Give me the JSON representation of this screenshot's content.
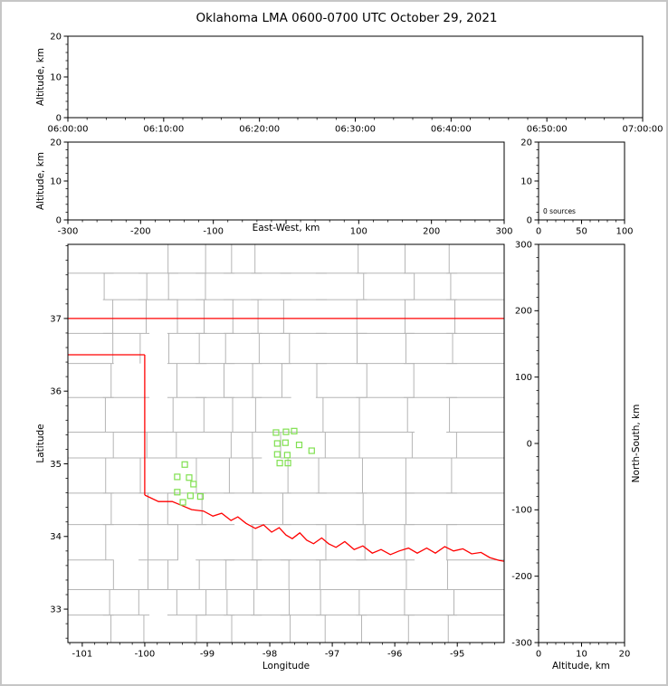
{
  "figure": {
    "title": "Oklahoma LMA 0600-0700 UTC October 29, 2021"
  },
  "colors": {
    "axis": "#000000",
    "county_lines": "#b5b5b5",
    "state_boundary": "#ff0000",
    "station_marker": "#80e050",
    "background": "#ffffff",
    "frame_border": "#c6c6c6"
  },
  "labels": {
    "altitude_axis_top": "Altitude, km",
    "altitude_axis_mid": "Altitude, km",
    "east_west_axis": "East-West, km",
    "latitude_axis": "Latitude",
    "longitude_axis": "Longitude",
    "altitude_axis_bottom": "Altitude, km",
    "north_south_axis": "North-South, km",
    "sources_annotation": "0 sources"
  },
  "chart_data": [
    {
      "id": "time_height_panel",
      "type": "scatter",
      "x_tick_labels": [
        "06:00:00",
        "06:10:00",
        "06:20:00",
        "06:30:00",
        "06:40:00",
        "06:50:00",
        "07:00:00"
      ],
      "ylabel": "Altitude, km",
      "ylim": [
        0,
        20
      ],
      "yticks": [
        0,
        10,
        20
      ],
      "points": []
    },
    {
      "id": "east_west_height_panel",
      "type": "scatter",
      "xlabel": "East-West, km",
      "xlim": [
        -300,
        300
      ],
      "xticks": [
        -300,
        -200,
        -100,
        0,
        100,
        200,
        300
      ],
      "x_tick_labels": [
        "-300",
        "-200",
        "-100",
        "",
        "100",
        "200",
        "300"
      ],
      "ylabel": "Altitude, km",
      "ylim": [
        0,
        20
      ],
      "yticks": [
        0,
        10,
        20
      ],
      "points": []
    },
    {
      "id": "altitude_histogram_panel",
      "type": "line",
      "annotation": "0 sources",
      "xlim": [
        0,
        100
      ],
      "xticks": [
        0,
        50,
        100
      ],
      "ylim": [
        0,
        20
      ],
      "yticks": [
        0,
        10,
        20
      ],
      "points": []
    },
    {
      "id": "plan_view_panel",
      "type": "scatter",
      "xlabel": "Longitude",
      "ylabel": "Latitude",
      "xlim": [
        -101.23,
        -94.25
      ],
      "xticks": [
        -101,
        -100,
        -99,
        -98,
        -97,
        -96,
        -95
      ],
      "ylim": [
        32.54,
        38.02
      ],
      "yticks": [
        33,
        34,
        35,
        36,
        37
      ],
      "stations": [
        [
          -99.36,
          34.99
        ],
        [
          -99.48,
          34.82
        ],
        [
          -99.29,
          34.81
        ],
        [
          -99.22,
          34.72
        ],
        [
          -99.48,
          34.61
        ],
        [
          -99.27,
          34.56
        ],
        [
          -99.11,
          34.55
        ],
        [
          -99.39,
          34.47
        ],
        [
          -97.9,
          35.43
        ],
        [
          -97.74,
          35.44
        ],
        [
          -97.61,
          35.45
        ],
        [
          -97.88,
          35.28
        ],
        [
          -97.75,
          35.29
        ],
        [
          -97.53,
          35.26
        ],
        [
          -97.88,
          35.13
        ],
        [
          -97.72,
          35.12
        ],
        [
          -97.33,
          35.18
        ],
        [
          -97.84,
          35.01
        ],
        [
          -97.71,
          35.01
        ]
      ],
      "state_boundary_segments": {
        "kansas_border_37N": [
          [
            -101.23,
            37.0
          ],
          [
            -94.25,
            37.0
          ]
        ],
        "panhandle_south_border_36_5N": [
          [
            -101.23,
            36.5
          ],
          [
            -100.0,
            36.5
          ]
        ],
        "west_border_100W": [
          [
            -100.0,
            36.5
          ],
          [
            -100.0,
            34.57
          ]
        ],
        "red_river_border": [
          [
            -100.0,
            34.57
          ],
          [
            -99.78,
            34.48
          ],
          [
            -99.56,
            34.48
          ],
          [
            -99.42,
            34.43
          ],
          [
            -99.25,
            34.37
          ],
          [
            -99.06,
            34.35
          ],
          [
            -98.91,
            34.28
          ],
          [
            -98.77,
            34.32
          ],
          [
            -98.62,
            34.22
          ],
          [
            -98.51,
            34.27
          ],
          [
            -98.38,
            34.18
          ],
          [
            -98.23,
            34.11
          ],
          [
            -98.1,
            34.16
          ],
          [
            -97.97,
            34.06
          ],
          [
            -97.85,
            34.12
          ],
          [
            -97.74,
            34.02
          ],
          [
            -97.64,
            33.97
          ],
          [
            -97.52,
            34.05
          ],
          [
            -97.41,
            33.95
          ],
          [
            -97.3,
            33.9
          ],
          [
            -97.17,
            33.98
          ],
          [
            -97.06,
            33.9
          ],
          [
            -96.94,
            33.85
          ],
          [
            -96.8,
            33.93
          ],
          [
            -96.65,
            33.82
          ],
          [
            -96.51,
            33.87
          ],
          [
            -96.36,
            33.77
          ],
          [
            -96.22,
            33.82
          ],
          [
            -96.07,
            33.75
          ],
          [
            -95.93,
            33.8
          ],
          [
            -95.78,
            33.84
          ],
          [
            -95.64,
            33.77
          ],
          [
            -95.49,
            33.84
          ],
          [
            -95.35,
            33.77
          ],
          [
            -95.2,
            33.86
          ],
          [
            -95.06,
            33.8
          ],
          [
            -94.91,
            33.83
          ],
          [
            -94.77,
            33.76
          ],
          [
            -94.62,
            33.78
          ],
          [
            -94.48,
            33.71
          ],
          [
            -94.33,
            33.67
          ],
          [
            -94.25,
            33.66
          ]
        ]
      }
    },
    {
      "id": "north_south_height_panel",
      "type": "scatter",
      "xlabel": "Altitude, km",
      "ylabel": "North-South, km",
      "xlim": [
        0,
        20
      ],
      "xticks": [
        0,
        10,
        20
      ],
      "ylim": [
        -300,
        300
      ],
      "yticks": [
        -300,
        -200,
        -100,
        0,
        100,
        200,
        300
      ],
      "points": []
    }
  ]
}
